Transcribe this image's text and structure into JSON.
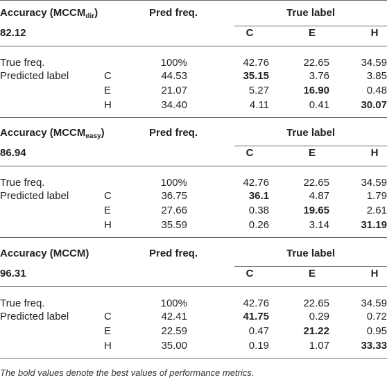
{
  "blocks": [
    {
      "title": "Accuracy (MCCM",
      "title_sub": "dir",
      "title_end": ")",
      "accuracy": "82.12",
      "pred_freq_header": "Pred freq.",
      "true_label_header": "True label",
      "columns": [
        "C",
        "E",
        "H"
      ],
      "rows": [
        {
          "label": "True freq.",
          "pred_freq": "100%",
          "values": [
            "42.76",
            "22.65",
            "34.59"
          ]
        },
        {
          "label": "Predicted label",
          "class": "C",
          "pred_freq": "44.53",
          "values": [
            "35.15",
            "3.76",
            "3.85"
          ],
          "bold": 0
        },
        {
          "class": "E",
          "pred_freq": "21.07",
          "values": [
            "5.27",
            "16.90",
            "0.48"
          ],
          "bold": 1
        },
        {
          "class": "H",
          "pred_freq": "34.40",
          "values": [
            "4.11",
            "0.41",
            "30.07"
          ],
          "bold": 2
        }
      ]
    },
    {
      "title": "Accuracy (MCCM",
      "title_sub": "easy",
      "title_end": ")",
      "accuracy": "86.94",
      "pred_freq_header": "Pred freq.",
      "true_label_header": "True label",
      "columns": [
        "C",
        "E",
        "H"
      ],
      "rows": [
        {
          "label": "True freq.",
          "pred_freq": "100%",
          "values": [
            "42.76",
            "22.65",
            "34.59"
          ]
        },
        {
          "label": "Predicted label",
          "class": "C",
          "pred_freq": "36.75",
          "values": [
            "36.1",
            "4.87",
            "1.79"
          ],
          "bold": 0
        },
        {
          "class": "E",
          "pred_freq": "27.66",
          "values": [
            "0.38",
            "19.65",
            "2.61"
          ],
          "bold": 1
        },
        {
          "class": "H",
          "pred_freq": "35.59",
          "values": [
            "0.26",
            "3.14",
            "31.19"
          ],
          "bold": 2
        }
      ]
    },
    {
      "title": "Accuracy (MCCM)",
      "accuracy": "96.31",
      "pred_freq_header": "Pred freq.",
      "true_label_header": "True label",
      "columns": [
        "C",
        "E",
        "H"
      ],
      "rows": [
        {
          "label": "True freq.",
          "pred_freq": "100%",
          "values": [
            "42.76",
            "22.65",
            "34.59"
          ]
        },
        {
          "label": "Predicted label",
          "class": "C",
          "pred_freq": "42.41",
          "values": [
            "41.75",
            "0.29",
            "0.72"
          ],
          "bold": 0
        },
        {
          "class": "E",
          "pred_freq": "22.59",
          "values": [
            "0.47",
            "21.22",
            "0.95"
          ],
          "bold": 1
        },
        {
          "class": "H",
          "pred_freq": "35.00",
          "values": [
            "0.19",
            "1.07",
            "33.33"
          ],
          "bold": 2
        }
      ]
    }
  ],
  "footnote": "The bold values denote the best values of performance metrics."
}
